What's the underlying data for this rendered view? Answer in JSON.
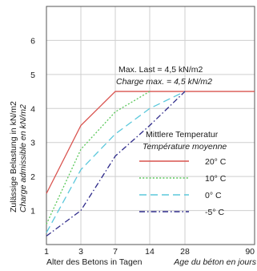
{
  "chart_data": {
    "type": "line",
    "ylabel_1": "Zulässige Belastung in kN/m2",
    "ylabel_2": "Charge admissible en kN/m2",
    "xlabel_1": "Alter des Betons in Tagen",
    "xlabel_2": "Age du béton en jours",
    "x_ticks": [
      "1",
      "3",
      "7",
      "14",
      "28",
      "90"
    ],
    "y_ticks": [
      "1",
      "2",
      "3",
      "4",
      "5",
      "6"
    ],
    "ylim": [
      0,
      7
    ],
    "grid": true,
    "annotation_1": "Max. Last = 4,5 kN/m2",
    "annotation_2": "Charge max. = 4,5 kN/m2",
    "legend_title_1": "Mittlere Temperatur",
    "legend_title_2": "Température moyenne",
    "legend_position": "center-right",
    "series": [
      {
        "name": "20° C",
        "color": "#d9534f",
        "dash": "solid",
        "points": [
          [
            "1",
            1.5
          ],
          [
            "3",
            3.5
          ],
          [
            "7",
            4.5
          ],
          [
            "90",
            4.5
          ]
        ]
      },
      {
        "name": "10° C",
        "color": "#5cc85c",
        "dash": "dotted",
        "points": [
          [
            "1",
            0.6
          ],
          [
            "3",
            2.8
          ],
          [
            "7",
            3.9
          ],
          [
            "14",
            4.5
          ]
        ]
      },
      {
        "name": "0° C",
        "color": "#5bc8dc",
        "dash": "dashed",
        "points": [
          [
            "1",
            0.35
          ],
          [
            "3",
            2.2
          ],
          [
            "7",
            3.25
          ],
          [
            "14",
            4.0
          ],
          [
            "28",
            4.5
          ]
        ]
      },
      {
        "name": "-5° C",
        "color": "#2e2a8a",
        "dash": "dashdot",
        "points": [
          [
            "1",
            0.25
          ],
          [
            "3",
            1.0
          ],
          [
            "7",
            2.6
          ],
          [
            "14",
            3.5
          ],
          [
            "28",
            4.5
          ]
        ]
      }
    ]
  }
}
